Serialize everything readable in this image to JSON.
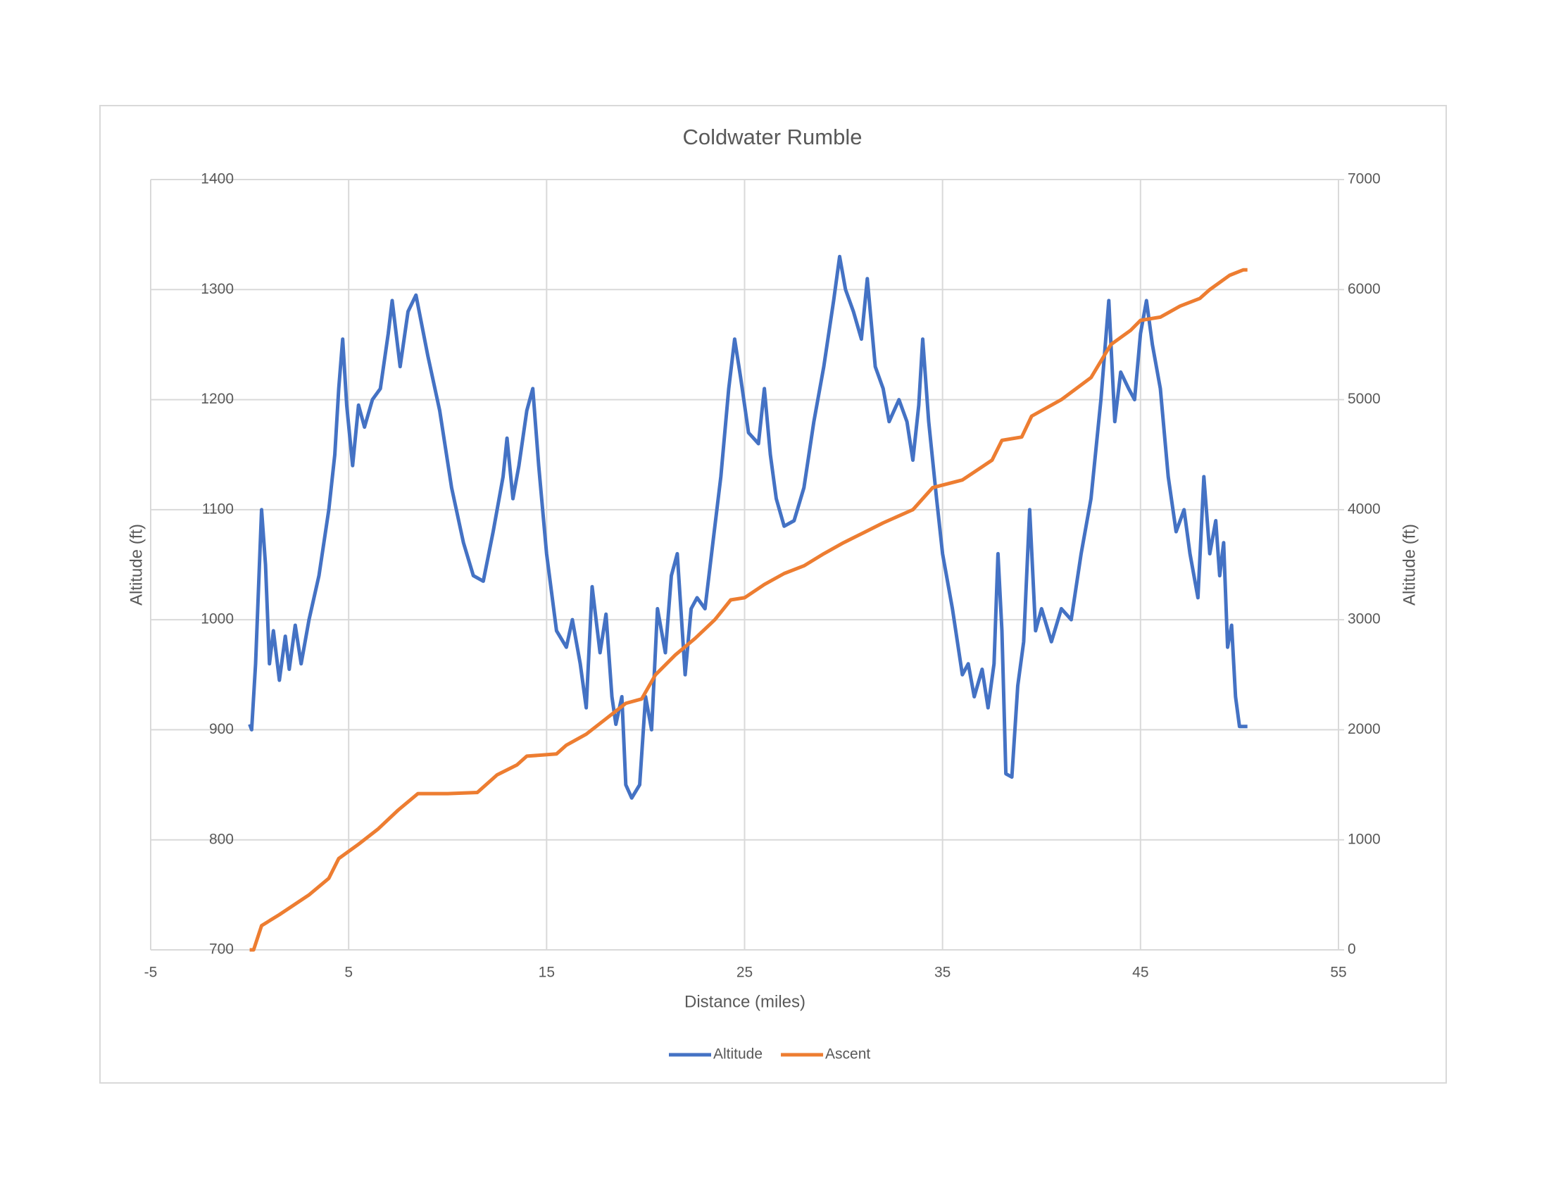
{
  "chart_data": {
    "type": "line",
    "title": "Coldwater Rumble",
    "x_label": "Distance (miles)",
    "y_label": "Altitude (ft)",
    "y2_label": "Altitude (ft)",
    "xlim": [
      -5,
      55
    ],
    "xticks": [
      -5,
      5,
      15,
      25,
      35,
      45,
      55
    ],
    "ylim": [
      700,
      1400
    ],
    "yticks": [
      700,
      800,
      900,
      1000,
      1100,
      1200,
      1300,
      1400
    ],
    "y2lim": [
      0,
      7000
    ],
    "y2ticks": [
      0,
      1000,
      2000,
      3000,
      4000,
      5000,
      6000,
      7000
    ],
    "grid": true,
    "legend": "bottom",
    "series": [
      {
        "name": "Altitude",
        "color": "#4472c4",
        "x": [
          0,
          0.1,
          0.3,
          0.6,
          0.8,
          1,
          1.2,
          1.5,
          1.8,
          2.0,
          2.3,
          2.6,
          3,
          3.5,
          4,
          4.3,
          4.5,
          4.7,
          4.9,
          5.2,
          5.5,
          5.8,
          6.2,
          6.6,
          7,
          7.2,
          7.6,
          8,
          8.4,
          9,
          9.6,
          10.2,
          10.8,
          11.3,
          11.8,
          12.3,
          12.8,
          13,
          13.3,
          13.6,
          14.0,
          14.3,
          14.6,
          15,
          15.5,
          16,
          16.3,
          16.7,
          17,
          17.3,
          17.7,
          18,
          18.3,
          18.5,
          18.8,
          19.0,
          19.3,
          19.7,
          20,
          20.3,
          20.6,
          21,
          21.3,
          21.6,
          22,
          22.3,
          22.6,
          23,
          23.4,
          23.8,
          24.2,
          24.5,
          24.8,
          25.2,
          25.7,
          26,
          26.3,
          26.6,
          27,
          27.5,
          28,
          28.5,
          29,
          29.5,
          29.8,
          30.1,
          30.5,
          30.9,
          31.2,
          31.6,
          32,
          32.3,
          32.8,
          33.2,
          33.5,
          33.8,
          34,
          34.3,
          34.7,
          35,
          35.5,
          36,
          36.3,
          36.6,
          37,
          37.3,
          37.6,
          37.8,
          38,
          38.2,
          38.5,
          38.8,
          39.1,
          39.4,
          39.7,
          40,
          40.5,
          41,
          41.5,
          42,
          42.5,
          43,
          43.4,
          43.7,
          44,
          44.4,
          44.7,
          45,
          45.3,
          45.6,
          46,
          46.4,
          46.8,
          47.2,
          47.5,
          47.9,
          48.2,
          48.5,
          48.8,
          49.0,
          49.2,
          49.4,
          49.6,
          49.8,
          50.0,
          50.4
        ],
        "values": [
          905,
          900,
          960,
          1100,
          1050,
          960,
          990,
          945,
          985,
          955,
          995,
          960,
          1000,
          1040,
          1100,
          1150,
          1210,
          1255,
          1195,
          1140,
          1195,
          1175,
          1200,
          1210,
          1260,
          1290,
          1230,
          1280,
          1295,
          1240,
          1190,
          1120,
          1070,
          1040,
          1035,
          1080,
          1130,
          1165,
          1110,
          1140,
          1190,
          1210,
          1140,
          1060,
          990,
          975,
          1000,
          960,
          920,
          1030,
          970,
          1005,
          930,
          905,
          930,
          850,
          838,
          850,
          930,
          900,
          1010,
          970,
          1040,
          1060,
          950,
          1010,
          1020,
          1010,
          1070,
          1130,
          1210,
          1255,
          1220,
          1170,
          1160,
          1210,
          1150,
          1110,
          1085,
          1090,
          1120,
          1180,
          1230,
          1290,
          1330,
          1300,
          1280,
          1255,
          1310,
          1230,
          1210,
          1180,
          1200,
          1180,
          1145,
          1195,
          1255,
          1180,
          1110,
          1060,
          1010,
          950,
          960,
          930,
          955,
          920,
          960,
          1060,
          990,
          860,
          857,
          940,
          980,
          1100,
          990,
          1010,
          980,
          1010,
          1000,
          1060,
          1110,
          1200,
          1290,
          1180,
          1225,
          1210,
          1200,
          1260,
          1290,
          1250,
          1210,
          1130,
          1080,
          1100,
          1060,
          1020,
          1130,
          1060,
          1090,
          1040,
          1070,
          975,
          995,
          930,
          903,
          903
        ]
      },
      {
        "name": "Ascent",
        "color": "#ed7d31",
        "axis": "y2",
        "x": [
          0,
          0.2,
          0.6,
          1.5,
          3,
          4,
          4.5,
          5.5,
          6.5,
          7.5,
          8.5,
          10,
          11.5,
          12.5,
          13.5,
          14,
          15.5,
          16,
          17,
          18,
          19,
          19.8,
          20.5,
          21.5,
          22.5,
          23.5,
          24.3,
          25,
          26,
          27,
          28,
          29,
          30,
          31,
          32,
          33.5,
          34.5,
          36,
          37.5,
          38,
          39,
          39.5,
          41,
          42.5,
          43.5,
          44.5,
          45,
          46,
          47,
          48,
          48.5,
          49.5,
          50.2,
          50.4
        ],
        "values": [
          0,
          0,
          220,
          320,
          500,
          650,
          830,
          960,
          1100,
          1270,
          1420,
          1420,
          1430,
          1590,
          1680,
          1760,
          1780,
          1860,
          1960,
          2100,
          2240,
          2280,
          2500,
          2680,
          2830,
          3000,
          3180,
          3200,
          3320,
          3420,
          3490,
          3600,
          3700,
          3790,
          3880,
          4000,
          4200,
          4270,
          4450,
          4630,
          4660,
          4850,
          5000,
          5200,
          5500,
          5630,
          5720,
          5750,
          5850,
          5920,
          6000,
          6130,
          6180,
          6180
        ]
      }
    ]
  }
}
